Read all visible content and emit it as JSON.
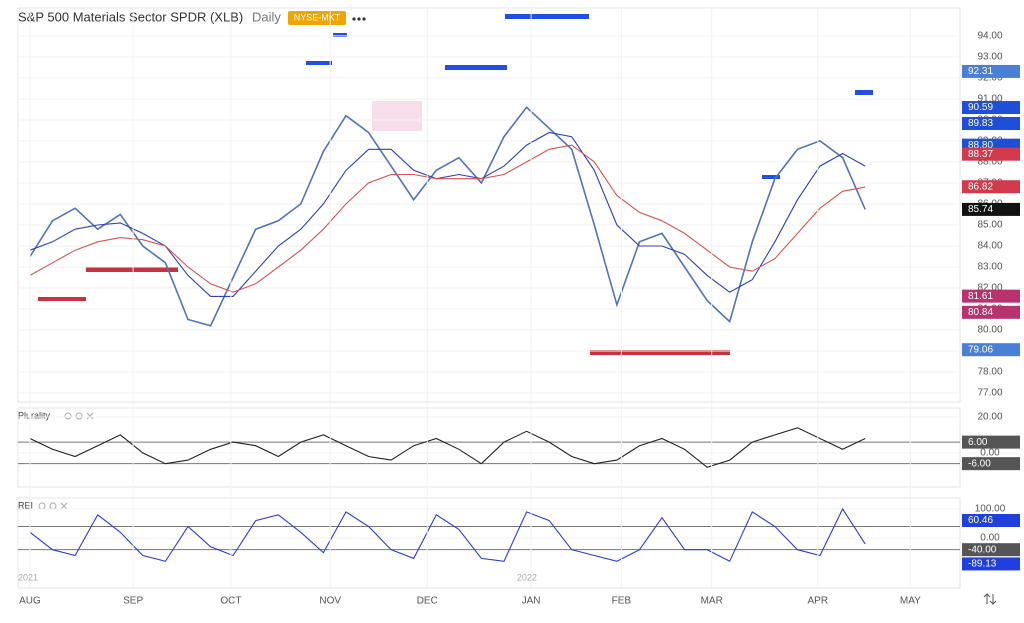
{
  "header": {
    "title": "S&P 500 Materials Sector SPDR (XLB)",
    "interval": "Daily",
    "exchange": "NYSE-MKT"
  },
  "chart_data": [
    {
      "type": "line",
      "xlim": [
        -0.53,
        41.2
      ],
      "ylim": [
        76.57,
        95.33
      ],
      "yticks": [
        {
          "value": 77,
          "label": "77.00"
        },
        {
          "value": 78,
          "label": "78.00"
        },
        {
          "value": 79,
          "label": "79.00"
        },
        {
          "value": 80,
          "label": "80.00"
        },
        {
          "value": 81,
          "label": "81.00"
        },
        {
          "value": 82,
          "label": "82.00"
        },
        {
          "value": 83,
          "label": "83.00"
        },
        {
          "value": 84,
          "label": "84.00"
        },
        {
          "value": 85,
          "label": "85.00"
        },
        {
          "value": 86,
          "label": "86.00"
        },
        {
          "value": 87,
          "label": "87.00"
        },
        {
          "value": 88,
          "label": "88.00"
        },
        {
          "value": 89,
          "label": "89.00"
        },
        {
          "value": 90,
          "label": "90.00"
        },
        {
          "value": 91,
          "label": "91.00"
        },
        {
          "value": 92,
          "label": "92.00"
        },
        {
          "value": 93,
          "label": "93.00"
        },
        {
          "value": 94,
          "label": "94.00"
        }
      ],
      "series": [
        {
          "color": "#4f74b8",
          "values": [
            83.5,
            85.2,
            85.8,
            84.8,
            85.5,
            84.0,
            83.2,
            80.5,
            80.2,
            82.5,
            84.8,
            85.2,
            86.0,
            88.5,
            90.2,
            89.4,
            87.8,
            86.2,
            87.6,
            88.2,
            87.0,
            89.2,
            90.6,
            89.6,
            88.6,
            85.0,
            81.2,
            84.2,
            84.6,
            83.0,
            81.4,
            80.4,
            84.2,
            87.2,
            88.6,
            89.0,
            88.2,
            85.74
          ]
        },
        {
          "color": "#2f3fbf",
          "values": [
            83.8,
            84.2,
            84.8,
            85.0,
            85.1,
            84.6,
            84.0,
            82.6,
            81.6,
            81.6,
            82.8,
            84.0,
            84.8,
            86.0,
            87.6,
            88.6,
            88.6,
            87.6,
            87.2,
            87.4,
            87.2,
            87.8,
            88.8,
            89.4,
            89.2,
            87.6,
            85.0,
            84.0,
            84.0,
            83.6,
            82.6,
            81.8,
            82.4,
            84.2,
            86.2,
            87.8,
            88.4,
            87.8
          ]
        },
        {
          "color": "#d9534f",
          "values": [
            82.6,
            83.2,
            83.8,
            84.2,
            84.4,
            84.3,
            84.0,
            83.0,
            82.2,
            81.8,
            82.2,
            83.0,
            83.8,
            84.8,
            86.0,
            87.0,
            87.4,
            87.4,
            87.2,
            87.2,
            87.2,
            87.4,
            88.0,
            88.6,
            88.8,
            88.0,
            86.4,
            85.6,
            85.2,
            84.6,
            83.8,
            83.0,
            82.8,
            83.4,
            84.6,
            85.8,
            86.6,
            86.8
          ]
        }
      ],
      "badges": [
        {
          "value": 92.31,
          "label": "92.31",
          "color": "#4a7fd6"
        },
        {
          "value": 90.59,
          "label": "90.59",
          "color": "#1f4ed8"
        },
        {
          "value": 89.83,
          "label": "89.83",
          "color": "#1f4ed8"
        },
        {
          "value": 88.8,
          "label": "88.80",
          "color": "#1f4ed8"
        },
        {
          "value": 88.37,
          "label": "88.37",
          "color": "#d23a4c"
        },
        {
          "value": 86.82,
          "label": "86.82",
          "color": "#d23a4c"
        },
        {
          "value": 85.74,
          "label": "85.74",
          "color": "#111111"
        },
        {
          "value": 81.61,
          "label": "81.61",
          "color": "#b8326e"
        },
        {
          "value": 80.84,
          "label": "80.84",
          "color": "#b8326e"
        },
        {
          "value": 79.06,
          "label": "79.06",
          "color": "#4a7fd6"
        }
      ]
    },
    {
      "type": "line",
      "title": "Plurality",
      "xlim": [
        -0.53,
        41.2
      ],
      "ylim": [
        -19,
        25
      ],
      "yticks": [
        {
          "value": 20,
          "label": "20.00"
        },
        {
          "value": 0,
          "label": "0.00"
        }
      ],
      "hlines": [
        6,
        -6
      ],
      "series": [
        {
          "color": "#222222",
          "values": [
            8,
            2,
            -2,
            4,
            10,
            0,
            -6,
            -4,
            2,
            6,
            4,
            -2,
            6,
            10,
            4,
            -2,
            -4,
            4,
            8,
            2,
            -6,
            6,
            12,
            6,
            -2,
            -6,
            -4,
            4,
            8,
            2,
            -8,
            -4,
            6,
            10,
            14,
            8,
            2,
            8
          ]
        }
      ],
      "badges": [
        {
          "value": 6,
          "label": "6.00",
          "color": "#555555"
        },
        {
          "value": -6,
          "label": "-6.00",
          "color": "#555555"
        }
      ]
    },
    {
      "type": "line",
      "title": "REI",
      "xlim": [
        -0.53,
        41.2
      ],
      "ylim": [
        -172,
        138
      ],
      "yticks": [
        {
          "value": 100,
          "label": "100.00"
        },
        {
          "value": 0,
          "label": "0.00"
        }
      ],
      "hlines": [
        40,
        -40
      ],
      "series": [
        {
          "color": "#2b3bd9",
          "values": [
            20,
            -40,
            -60,
            80,
            20,
            -60,
            -80,
            40,
            -30,
            -60,
            60,
            80,
            20,
            -50,
            90,
            40,
            -40,
            -70,
            80,
            30,
            -70,
            -80,
            90,
            60,
            -40,
            -60,
            -80,
            -40,
            70,
            -40,
            -40,
            -80,
            90,
            40,
            -40,
            -60,
            100,
            -20
          ]
        }
      ],
      "badges": [
        {
          "value": 60.46,
          "label": "60.46",
          "color": "#1f3fe0"
        },
        {
          "value": -40,
          "label": "-40.00",
          "color": "#555555"
        },
        {
          "value": -89.13,
          "label": "-89.13",
          "color": "#1f3fe0"
        }
      ],
      "xticks": [
        {
          "value": 0,
          "label": "AUG"
        },
        {
          "value": 4.57,
          "label": "SEP"
        },
        {
          "value": 8.9,
          "label": "OCT"
        },
        {
          "value": 13.3,
          "label": "NOV"
        },
        {
          "value": 17.6,
          "label": "DEC"
        },
        {
          "value": 22.2,
          "label": "JAN"
        },
        {
          "value": 26.2,
          "label": "FEB"
        },
        {
          "value": 30.2,
          "label": "MAR"
        },
        {
          "value": 34.9,
          "label": "APR"
        },
        {
          "value": 39,
          "label": "MAY"
        }
      ],
      "year_labels": [
        {
          "value": 0,
          "label": "2021"
        },
        {
          "value": 22.1,
          "label": "2022"
        }
      ]
    }
  ]
}
